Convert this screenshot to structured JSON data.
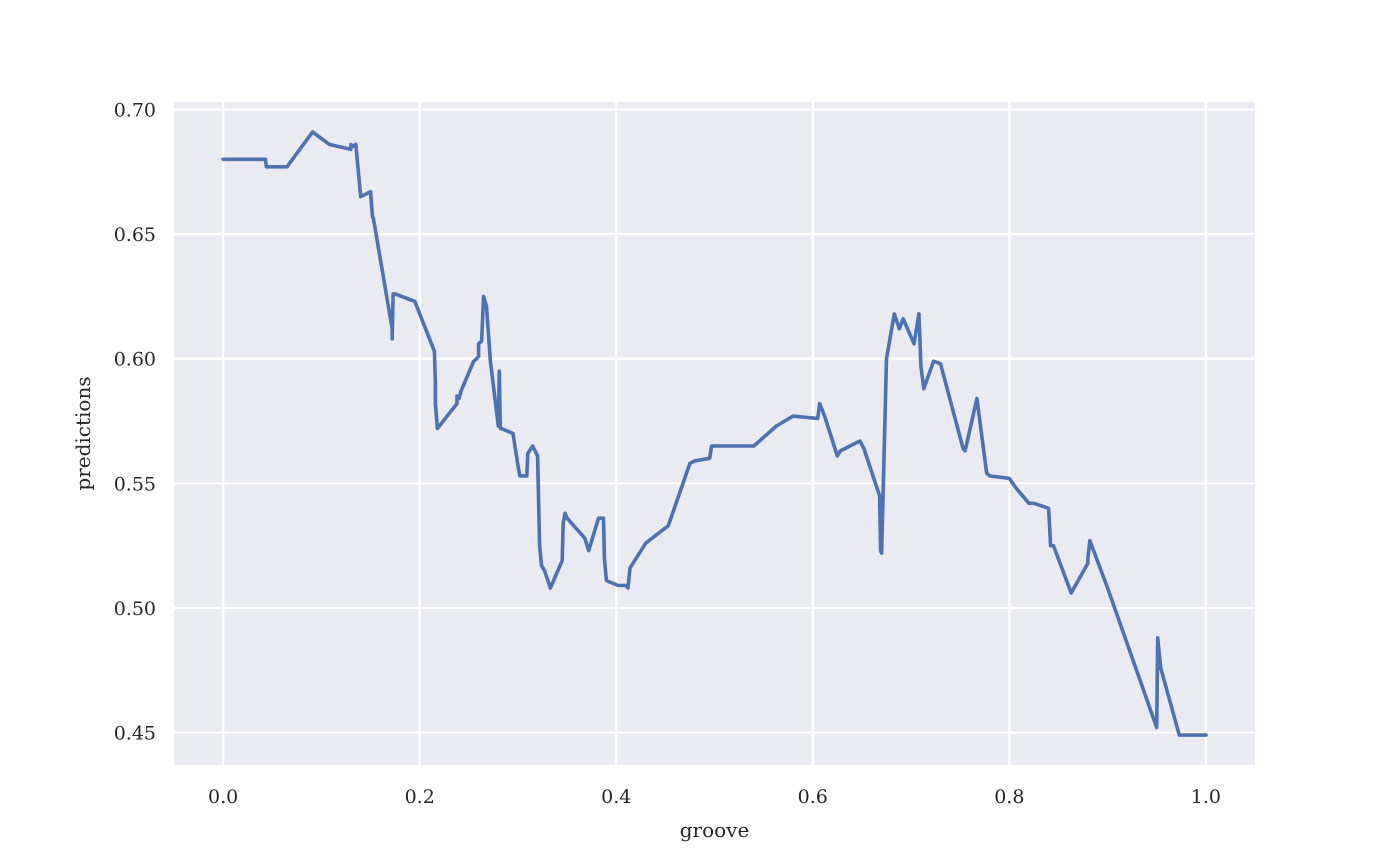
{
  "chart_data": {
    "type": "line",
    "xlabel": "groove",
    "ylabel": "predictions",
    "xlim": [
      -0.05,
      1.05
    ],
    "ylim": [
      0.437,
      0.703
    ],
    "x_ticks": [
      0.0,
      0.2,
      0.4,
      0.6,
      0.8,
      1.0
    ],
    "x_tick_labels": [
      "0.0",
      "0.2",
      "0.4",
      "0.6",
      "0.8",
      "1.0"
    ],
    "y_ticks": [
      0.45,
      0.5,
      0.55,
      0.6,
      0.65,
      0.7
    ],
    "y_tick_labels": [
      "0.45",
      "0.50",
      "0.55",
      "0.60",
      "0.65",
      "0.70"
    ],
    "grid": true,
    "background_color": "#eaeaf2",
    "grid_color": "#ffffff",
    "line_color": "#4c72b0",
    "series": [
      {
        "x": [
          0.0,
          0.043,
          0.044,
          0.065,
          0.091,
          0.108,
          0.13,
          0.13,
          0.131,
          0.135,
          0.14,
          0.15,
          0.152,
          0.153,
          0.172,
          0.172,
          0.173,
          0.175,
          0.195,
          0.215,
          0.216,
          0.216,
          0.218,
          0.238,
          0.238,
          0.24,
          0.242,
          0.255,
          0.258,
          0.26,
          0.26,
          0.263,
          0.265,
          0.268,
          0.272,
          0.28,
          0.281,
          0.282,
          0.283,
          0.295,
          0.3,
          0.302,
          0.306,
          0.309,
          0.31,
          0.315,
          0.32,
          0.322,
          0.324,
          0.327,
          0.333,
          0.345,
          0.346,
          0.348,
          0.35,
          0.368,
          0.372,
          0.382,
          0.387,
          0.388,
          0.39,
          0.402,
          0.41,
          0.412,
          0.414,
          0.43,
          0.453,
          0.475,
          0.48,
          0.495,
          0.497,
          0.54,
          0.563,
          0.58,
          0.605,
          0.607,
          0.612,
          0.625,
          0.628,
          0.648,
          0.652,
          0.668,
          0.669,
          0.67,
          0.675,
          0.683,
          0.688,
          0.692,
          0.703,
          0.708,
          0.709,
          0.71,
          0.713,
          0.723,
          0.73,
          0.753,
          0.755,
          0.767,
          0.777,
          0.78,
          0.8,
          0.807,
          0.82,
          0.825,
          0.84,
          0.842,
          0.845,
          0.863,
          0.88,
          0.88,
          0.882,
          0.9,
          0.95,
          0.951,
          0.954,
          0.973,
          1.0
        ],
        "y": [
          0.68,
          0.68,
          0.677,
          0.677,
          0.691,
          0.686,
          0.684,
          0.686,
          0.685,
          0.686,
          0.665,
          0.667,
          0.657,
          0.656,
          0.612,
          0.608,
          0.626,
          0.626,
          0.623,
          0.603,
          0.59,
          0.582,
          0.572,
          0.582,
          0.585,
          0.584,
          0.587,
          0.599,
          0.6,
          0.601,
          0.606,
          0.607,
          0.625,
          0.621,
          0.599,
          0.573,
          0.595,
          0.572,
          0.572,
          0.57,
          0.557,
          0.553,
          0.553,
          0.553,
          0.562,
          0.565,
          0.561,
          0.525,
          0.517,
          0.515,
          0.508,
          0.519,
          0.534,
          0.538,
          0.536,
          0.528,
          0.523,
          0.536,
          0.536,
          0.52,
          0.511,
          0.509,
          0.509,
          0.508,
          0.516,
          0.526,
          0.533,
          0.558,
          0.559,
          0.56,
          0.565,
          0.565,
          0.573,
          0.577,
          0.576,
          0.582,
          0.577,
          0.561,
          0.563,
          0.567,
          0.564,
          0.545,
          0.523,
          0.522,
          0.6,
          0.618,
          0.612,
          0.616,
          0.606,
          0.618,
          0.608,
          0.597,
          0.588,
          0.599,
          0.598,
          0.564,
          0.563,
          0.584,
          0.554,
          0.553,
          0.552,
          0.548,
          0.542,
          0.542,
          0.54,
          0.525,
          0.525,
          0.506,
          0.518,
          0.52,
          0.527,
          0.508,
          0.452,
          0.488,
          0.476,
          0.449,
          0.449
        ]
      }
    ]
  }
}
